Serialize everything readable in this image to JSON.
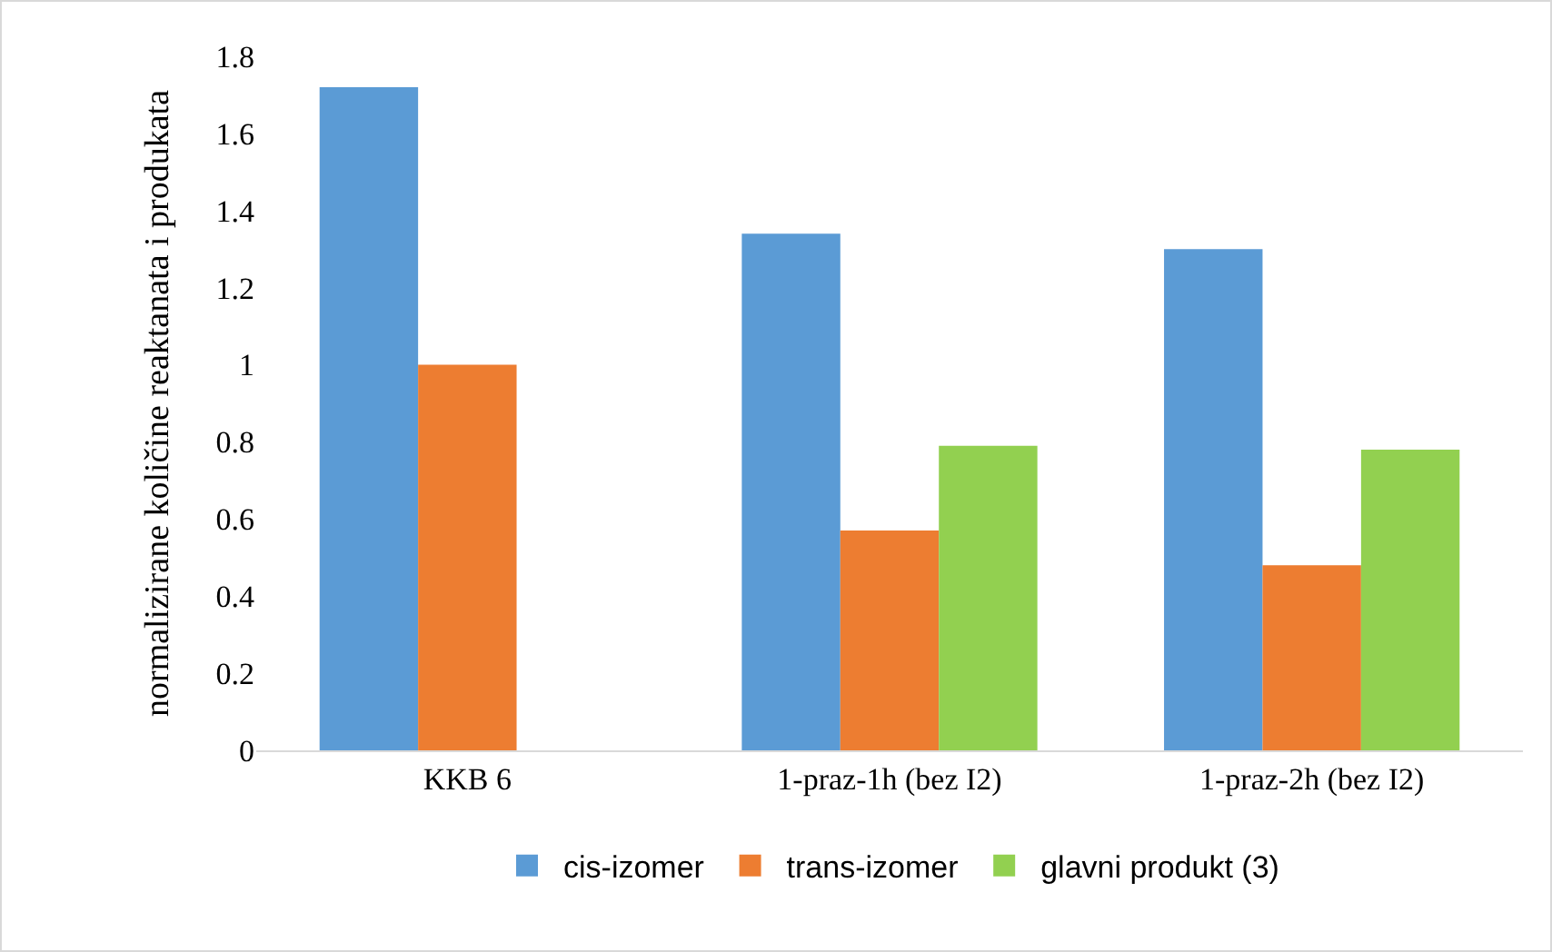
{
  "chart_data": {
    "type": "bar",
    "ylabel": "normalizirane količine reaktanata i produkata",
    "categories": [
      "KKB 6",
      "1-praz-1h (bez I2)",
      "1-praz-2h (bez I2)"
    ],
    "series": [
      {
        "name": "cis-izomer",
        "color": "#5b9bd5",
        "values": [
          1.72,
          1.34,
          1.3
        ]
      },
      {
        "name": "trans-izomer",
        "color": "#ed7d31",
        "values": [
          1.0,
          0.57,
          0.48
        ]
      },
      {
        "name": "glavni produkt (3)",
        "color": "#92d050",
        "values": [
          null,
          0.79,
          0.78
        ]
      }
    ],
    "ylim": [
      0,
      1.8
    ],
    "yticks": [
      0,
      0.2,
      0.4,
      0.6,
      0.8,
      1,
      1.2,
      1.4,
      1.6,
      1.8
    ],
    "grid": false,
    "legend": "bottom"
  }
}
